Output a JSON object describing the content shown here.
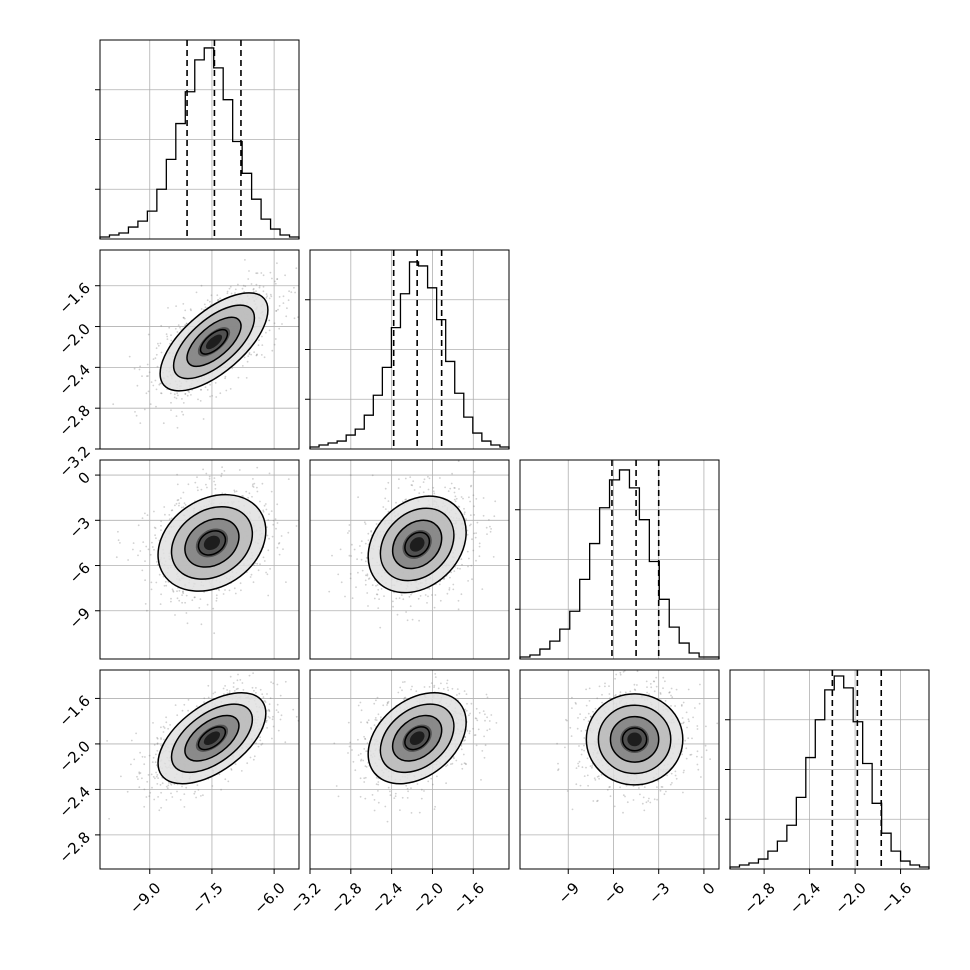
{
  "chart_data": {
    "type": "corner",
    "parameters": [
      {
        "ticks": [
          -9.0,
          -7.5,
          -6.0
        ],
        "tick_labels": [
          "−9.0",
          "−7.5",
          "−6.0"
        ],
        "range": [
          -10.2,
          -5.4
        ]
      },
      {
        "ticks": [
          -3.2,
          -2.8,
          -2.4,
          -2.0,
          -1.6
        ],
        "tick_labels": [
          "−3.2",
          "−2.8",
          "−2.4",
          "−2.0",
          "−1.6"
        ],
        "range": [
          -3.2,
          -1.25
        ]
      },
      {
        "ticks": [
          -9,
          -6,
          -3,
          0
        ],
        "tick_labels": [
          "−9",
          "−6",
          "−3",
          "0"
        ],
        "range": [
          -12.2,
          1.0
        ]
      },
      {
        "ticks": [
          -2.8,
          -2.4,
          -2.0,
          -1.6
        ],
        "tick_labels": [
          "−2.8",
          "−2.4",
          "−2.0",
          "−1.6"
        ],
        "range": [
          -3.1,
          -1.35
        ]
      }
    ],
    "histograms": [
      {
        "quantiles": [
          -8.1,
          -7.44,
          -6.8
        ],
        "counts": [
          1,
          2,
          3,
          6,
          9,
          14,
          25,
          40,
          58,
          74,
          90,
          96,
          86,
          70,
          49,
          33,
          20,
          10,
          5,
          2,
          1
        ],
        "ymax": 100,
        "yticks": [
          25,
          50,
          75
        ]
      },
      {
        "quantiles": [
          -2.38,
          -2.15,
          -1.91
        ],
        "counts": [
          1,
          2,
          3,
          4,
          7,
          10,
          17,
          27,
          41,
          61,
          78,
          94,
          92,
          81,
          65,
          44,
          28,
          16,
          8,
          4,
          2,
          1
        ],
        "ymax": 100,
        "yticks": [
          25,
          50,
          75
        ]
      },
      {
        "quantiles": [
          -6.1,
          -4.5,
          -3.0
        ],
        "counts": [
          1,
          2,
          5,
          9,
          15,
          24,
          40,
          58,
          76,
          90,
          95,
          86,
          70,
          49,
          30,
          16,
          8,
          3,
          1,
          1
        ],
        "ymax": 100,
        "yticks": [
          25,
          50,
          75
        ]
      },
      {
        "quantiles": [
          -2.2,
          -1.98,
          -1.77
        ],
        "counts": [
          1,
          2,
          3,
          5,
          9,
          14,
          22,
          36,
          56,
          75,
          90,
          97,
          91,
          74,
          53,
          33,
          18,
          9,
          4,
          2,
          1
        ],
        "ymax": 100,
        "yticks": [
          25,
          50,
          75
        ]
      }
    ],
    "pairs": [
      {
        "row": 1,
        "col": 0,
        "mean": [
          -7.45,
          -2.15
        ],
        "sd": [
          0.65,
          0.24
        ],
        "rho": 0.65
      },
      {
        "row": 2,
        "col": 0,
        "mean": [
          -7.5,
          -4.5
        ],
        "sd": [
          0.65,
          1.6
        ],
        "rho": 0.25
      },
      {
        "row": 2,
        "col": 1,
        "mean": [
          -2.15,
          -4.6
        ],
        "sd": [
          0.24,
          1.6
        ],
        "rho": 0.25
      },
      {
        "row": 3,
        "col": 0,
        "mean": [
          -7.5,
          -1.95
        ],
        "sd": [
          0.65,
          0.2
        ],
        "rho": 0.55
      },
      {
        "row": 3,
        "col": 1,
        "mean": [
          -2.15,
          -1.95
        ],
        "sd": [
          0.24,
          0.2
        ],
        "rho": 0.35
      },
      {
        "row": 3,
        "col": 2,
        "mean": [
          -4.6,
          -1.96
        ],
        "sd": [
          1.6,
          0.2
        ],
        "rho": 0.0
      }
    ],
    "contour_levels_sigma": [
      0.5,
      1.0,
      1.5,
      2.0
    ],
    "grid": true,
    "title": "",
    "xlabel": "",
    "ylabel": ""
  }
}
